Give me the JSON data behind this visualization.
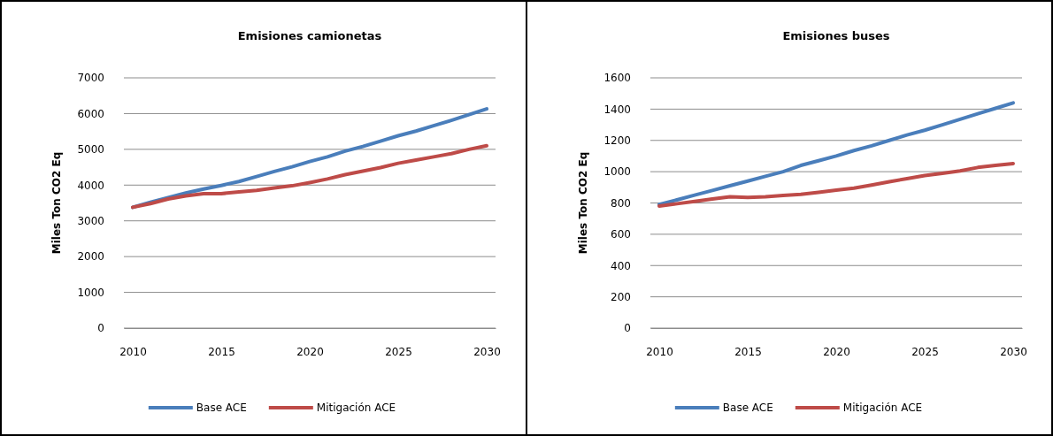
{
  "chart_data": [
    {
      "type": "line",
      "title": "Emisiones camionetas",
      "ylabel": "Miles Ton CO2 Eq",
      "x": [
        2010,
        2011,
        2012,
        2013,
        2014,
        2015,
        2016,
        2017,
        2018,
        2019,
        2020,
        2021,
        2022,
        2023,
        2024,
        2025,
        2026,
        2027,
        2028,
        2029,
        2030
      ],
      "xlim": [
        2009.5,
        2030.5
      ],
      "xticks": [
        2010,
        2015,
        2020,
        2025,
        2030
      ],
      "ylim": [
        0,
        7000
      ],
      "yticks": [
        0,
        1000,
        2000,
        3000,
        4000,
        5000,
        6000,
        7000
      ],
      "grid": "y",
      "legend": "bottom",
      "marker": "none",
      "line_style": "solid",
      "series": [
        {
          "name": "Base ACE",
          "color": "#4a7ebb",
          "values": [
            3380,
            3520,
            3650,
            3780,
            3890,
            3990,
            4100,
            4240,
            4380,
            4510,
            4660,
            4790,
            4950,
            5080,
            5230,
            5380,
            5510,
            5660,
            5810,
            5970,
            6130
          ]
        },
        {
          "name": "Mitigación ACE",
          "color": "#be4b48",
          "values": [
            3380,
            3480,
            3610,
            3700,
            3760,
            3760,
            3810,
            3850,
            3920,
            3980,
            4070,
            4170,
            4290,
            4390,
            4490,
            4610,
            4700,
            4790,
            4880,
            5000,
            5100
          ]
        }
      ]
    },
    {
      "type": "line",
      "title": "Emisiones buses",
      "ylabel": "Miles Ton CO2 Eq",
      "x": [
        2010,
        2011,
        2012,
        2013,
        2014,
        2015,
        2016,
        2017,
        2018,
        2019,
        2020,
        2021,
        2022,
        2023,
        2024,
        2025,
        2026,
        2027,
        2028,
        2029,
        2030
      ],
      "xlim": [
        2009.5,
        2030.5
      ],
      "xticks": [
        2010,
        2015,
        2020,
        2025,
        2030
      ],
      "ylim": [
        0,
        1600
      ],
      "yticks": [
        0,
        200,
        400,
        600,
        800,
        1000,
        1200,
        1400,
        1600
      ],
      "grid": "y",
      "legend": "bottom",
      "marker": "none",
      "line_style": "solid",
      "series": [
        {
          "name": "Base ACE",
          "color": "#4a7ebb",
          "values": [
            790,
            820,
            850,
            880,
            910,
            940,
            970,
            1000,
            1040,
            1070,
            1100,
            1135,
            1165,
            1200,
            1235,
            1265,
            1300,
            1335,
            1370,
            1405,
            1440
          ]
        },
        {
          "name": "Mitigación ACE",
          "color": "#be4b48",
          "values": [
            780,
            795,
            810,
            825,
            840,
            835,
            840,
            848,
            855,
            868,
            882,
            895,
            915,
            936,
            955,
            975,
            990,
            1005,
            1027,
            1040,
            1052
          ]
        }
      ]
    }
  ]
}
